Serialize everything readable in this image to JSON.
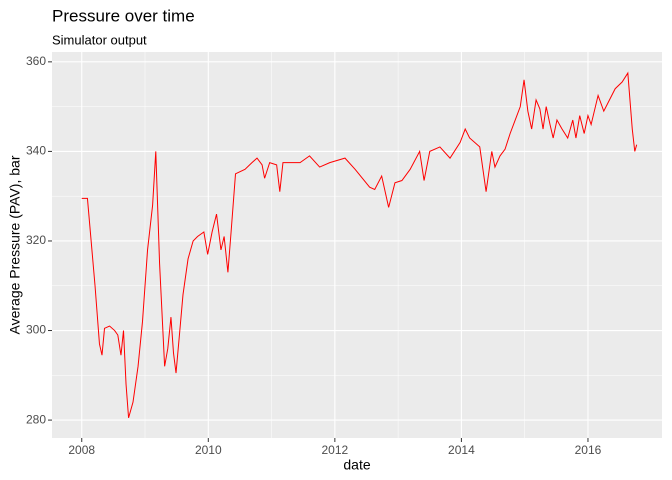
{
  "chart_data": {
    "type": "line",
    "title": "Pressure over time",
    "subtitle": "Simulator output",
    "x_label": "date",
    "y_label": "Average Pressure (PAV), bar",
    "x": [
      2008.0,
      2008.09,
      2008.21,
      2008.28,
      2008.32,
      2008.36,
      2008.44,
      2008.52,
      2008.57,
      2008.62,
      2008.66,
      2008.7,
      2008.74,
      2008.81,
      2008.89,
      2008.96,
      2009.04,
      2009.12,
      2009.17,
      2009.23,
      2009.31,
      2009.36,
      2009.41,
      2009.45,
      2009.49,
      2009.55,
      2009.6,
      2009.68,
      2009.76,
      2009.83,
      2009.93,
      2009.99,
      2010.06,
      2010.13,
      2010.2,
      2010.25,
      2010.31,
      2010.36,
      2010.43,
      2010.58,
      2010.69,
      2010.77,
      2010.85,
      2010.89,
      2010.97,
      2011.08,
      2011.13,
      2011.18,
      2011.45,
      2011.6,
      2011.76,
      2011.92,
      2012.16,
      2012.32,
      2012.55,
      2012.63,
      2012.74,
      2012.85,
      2012.95,
      2013.06,
      2013.19,
      2013.34,
      2013.41,
      2013.5,
      2013.66,
      2013.82,
      2013.98,
      2014.06,
      2014.13,
      2014.29,
      2014.39,
      2014.45,
      2014.48,
      2014.53,
      2014.61,
      2014.69,
      2014.77,
      2014.85,
      2014.93,
      2014.99,
      2015.05,
      2015.11,
      2015.18,
      2015.24,
      2015.29,
      2015.34,
      2015.4,
      2015.45,
      2015.51,
      2015.59,
      2015.68,
      2015.76,
      2015.81,
      2015.87,
      2015.94,
      2016.0,
      2016.05,
      2016.16,
      2016.25,
      2016.43,
      2016.54,
      2016.63,
      2016.7,
      2016.74,
      2016.77
    ],
    "series": [
      {
        "name": "PAV",
        "color": "#ff0000",
        "values": [
          329.5,
          329.5,
          310,
          297,
          294.5,
          300.5,
          301,
          300,
          299,
          294.5,
          300,
          288,
          280.5,
          284,
          292,
          302,
          318,
          328,
          340,
          315,
          292,
          296,
          303,
          295,
          290.5,
          300,
          308,
          316,
          320,
          321,
          322,
          317,
          322,
          326,
          318,
          321,
          313,
          322,
          335,
          336,
          337.5,
          338.5,
          337,
          334,
          337.5,
          337,
          331,
          337.5,
          337.5,
          339,
          336.5,
          337.5,
          338.5,
          336,
          332,
          331.5,
          334.5,
          327.5,
          333,
          333.5,
          336,
          340,
          333.5,
          340,
          341,
          338.5,
          342,
          345,
          343,
          341,
          331,
          337,
          340,
          336.5,
          339,
          340.5,
          344,
          347,
          350,
          356,
          349,
          345,
          351.5,
          349.5,
          345,
          350,
          346,
          343,
          347,
          345,
          343,
          347,
          343,
          348,
          344,
          348,
          346,
          352.5,
          349,
          354,
          355.5,
          357.5,
          345,
          340,
          341.5
        ]
      }
    ],
    "xlim": [
      2007.53,
      2017.17
    ],
    "xticks": [
      2008,
      2010,
      2012,
      2014,
      2016
    ],
    "ylim": [
      276.0,
      362.2
    ],
    "yticks": [
      280,
      300,
      320,
      340,
      360
    ],
    "grid": true,
    "panel_color": "#ebebeb"
  }
}
